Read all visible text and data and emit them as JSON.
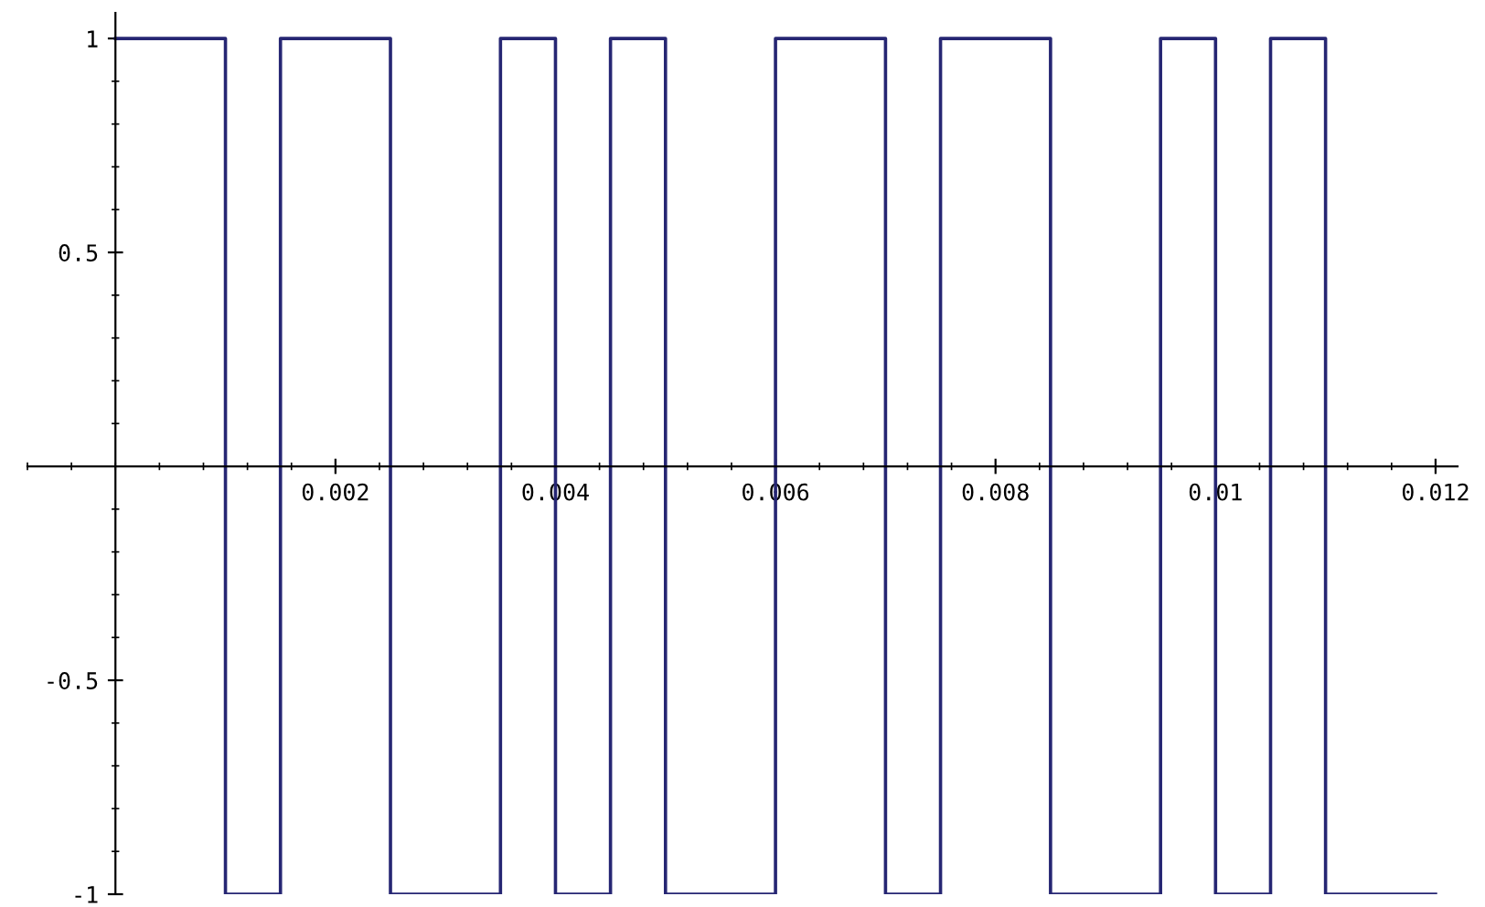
{
  "chart_data": {
    "type": "step",
    "x": [
      0,
      0.001,
      0.0015,
      0.0025,
      0.0035,
      0.004,
      0.0045,
      0.005,
      0.006,
      0.007,
      0.0075,
      0.0085,
      0.0095,
      0.01,
      0.0105,
      0.011,
      0.012
    ],
    "series": [
      {
        "color": "#262673",
        "values": [
          1,
          -1,
          1,
          -1,
          1,
          -1,
          1,
          -1,
          1,
          -1,
          1,
          -1,
          1,
          -1,
          1,
          -1,
          -1
        ]
      }
    ],
    "xlim": [
      -0.0008,
      0.0122
    ],
    "ylim": [
      -1,
      1.06
    ],
    "xticks": [
      0.002,
      0.004,
      0.006,
      0.008,
      {
        "value": 0.01,
        "label": "0.01"
      },
      0.012
    ],
    "yticks": [
      -1,
      -0.5,
      0.5,
      1
    ],
    "grid": false,
    "legend": false
  }
}
